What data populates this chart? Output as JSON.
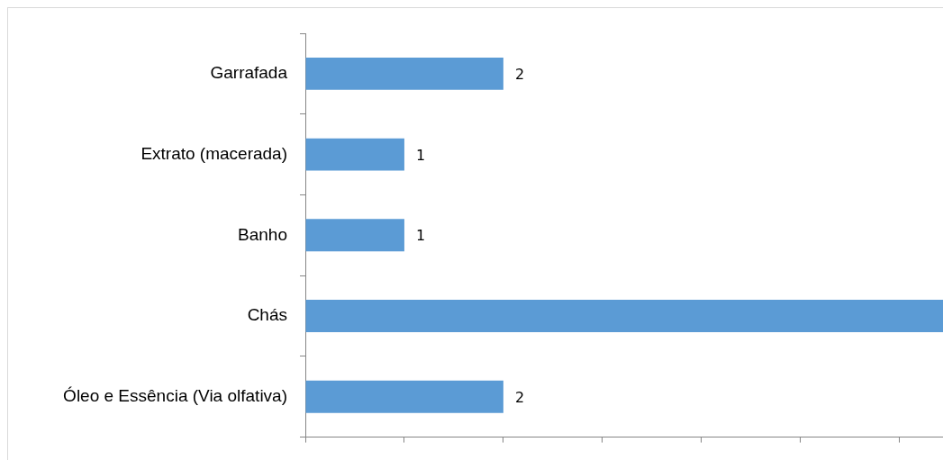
{
  "chart_data": {
    "type": "bar",
    "orientation": "horizontal",
    "categories": [
      "Garrafada",
      "Extrato (macerada)",
      "Banho",
      "Chás",
      "Óleo e Essência (Via olfativa)"
    ],
    "values": [
      2,
      1,
      1,
      6.44,
      2
    ],
    "value_labels": [
      "2",
      "1",
      "1",
      null,
      "2"
    ],
    "color": "#5b9bd5",
    "xlim": [
      0,
      6.44
    ],
    "xticks": [
      {
        "value": 0,
        "label": null
      },
      {
        "value": 1,
        "label": null
      },
      {
        "value": 2,
        "label": null
      },
      {
        "value": 3,
        "label": null
      },
      {
        "value": 4,
        "label": null
      },
      {
        "value": 5,
        "label": null
      },
      {
        "value": 6,
        "label": null
      }
    ],
    "tick_labels": "y",
    "grid": false,
    "legend": false
  }
}
